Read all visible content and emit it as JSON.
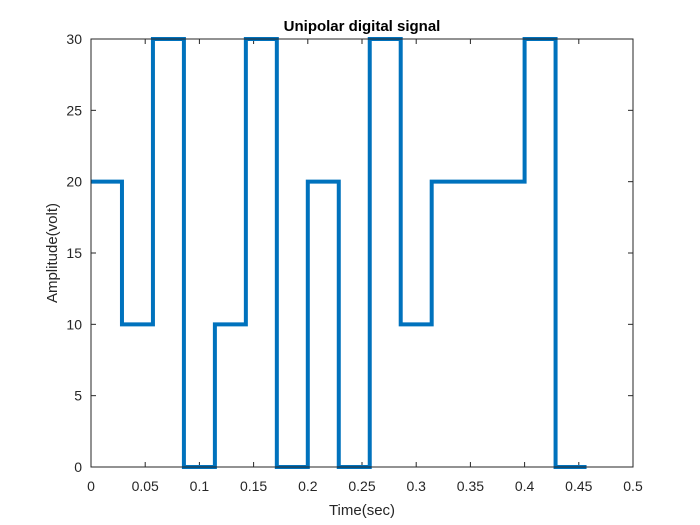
{
  "chart_data": {
    "type": "line",
    "step": "post",
    "title": "Unipolar digital signal",
    "xlabel": "Time(sec)",
    "ylabel": "Amplitude(volt)",
    "xlim": [
      0,
      0.5
    ],
    "ylim": [
      0,
      30
    ],
    "xticks": [
      "0",
      "0.05",
      "0.1",
      "0.15",
      "0.2",
      "0.25",
      "0.3",
      "0.35",
      "0.4",
      "0.45",
      "0.5"
    ],
    "yticks": [
      "0",
      "5",
      "10",
      "15",
      "20",
      "25",
      "30"
    ],
    "grid": false,
    "box": true,
    "line_color": "#0072BD",
    "series": [
      {
        "x": [
          0,
          0.02857,
          0.05714,
          0.08571,
          0.11429,
          0.14286,
          0.17143,
          0.2,
          0.22857,
          0.25714,
          0.28571,
          0.31429,
          0.34286,
          0.37143,
          0.4,
          0.42857,
          0.45714
        ],
        "values": [
          20,
          10,
          30,
          0,
          10,
          30,
          0,
          20,
          0,
          30,
          10,
          20,
          20,
          20,
          30,
          0,
          0
        ]
      }
    ]
  }
}
